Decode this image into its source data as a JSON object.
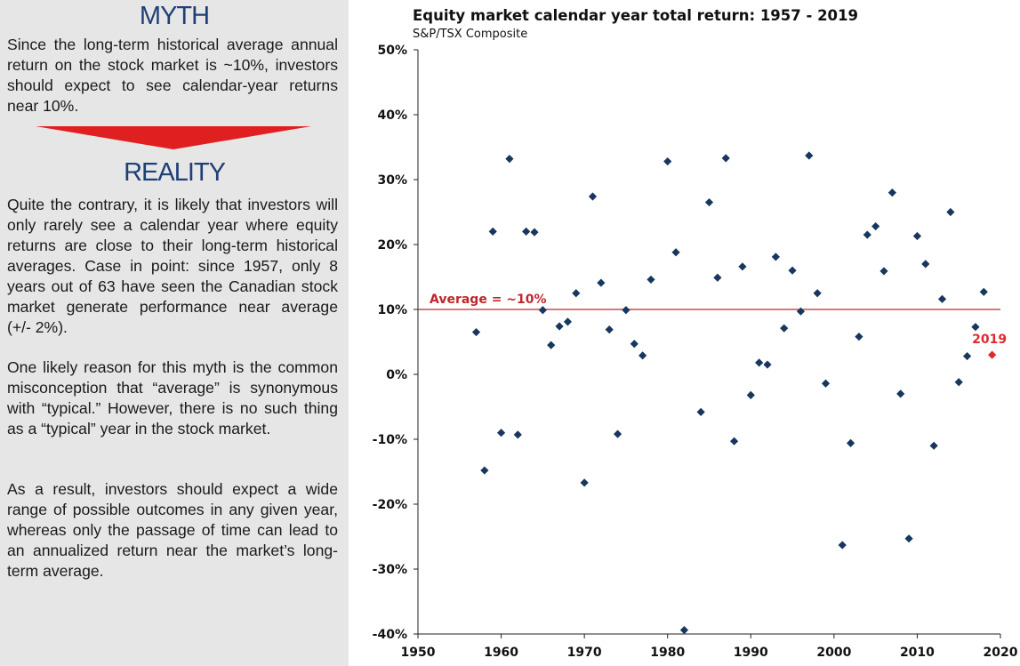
{
  "left": {
    "myth_heading": "MYTH",
    "myth_text": "Since the long-term historical average annual return on the stock market is ~10%, investors should expect to see calendar-year returns near 10%.",
    "reality_heading": "REALITY",
    "reality_paragraphs": [
      "Quite the contrary, it is likely that investors will only rarely see a calendar year where equity returns are close to their long-term historical averages. Case in point: since 1957, only 8 years out of 63 have seen the Canadian stock market generate performance near average (+/- 2%).",
      "One likely reason for this myth is the common misconception that “average” is synonymous with “typical.” However, there is no such thing as a “typical” year in the stock market.",
      "As a result, investors should expect a wide range of possible outcomes in any given year, whereas only the passage of time can lead to an annualized return near the market’s long-term average."
    ],
    "arrow_color": "#e02020",
    "heading_color": "#1f3f77"
  },
  "chart_data": {
    "type": "scatter",
    "title": "Equity market calendar year total return: 1957 - 2019",
    "subtitle": "S&P/TSX Composite",
    "xlim": [
      1950,
      2020
    ],
    "ylim": [
      -40,
      50
    ],
    "x_ticks": [
      "1950",
      "1960",
      "1970",
      "1980",
      "1990",
      "2000",
      "2010",
      "2020"
    ],
    "y_ticks": [
      "50%",
      "40%",
      "30%",
      "20%",
      "10%",
      "0%",
      "-10%",
      "-20%",
      "-30%",
      "-40%"
    ],
    "average_line": {
      "value": 10,
      "label": "Average = ~10%",
      "color": "#c0262d"
    },
    "highlight": {
      "year": 2019,
      "value": 3,
      "label": "2019",
      "color": "#e0282e"
    },
    "marker_color": "#17375e",
    "grid": false,
    "points": [
      {
        "year": 1957,
        "value": 6.5
      },
      {
        "year": 1958,
        "value": -14.8
      },
      {
        "year": 1959,
        "value": 22
      },
      {
        "year": 1960,
        "value": -9
      },
      {
        "year": 1961,
        "value": 33.2
      },
      {
        "year": 1962,
        "value": -9.3
      },
      {
        "year": 1963,
        "value": 22
      },
      {
        "year": 1964,
        "value": 21.9
      },
      {
        "year": 1965,
        "value": 9.9
      },
      {
        "year": 1966,
        "value": 4.5
      },
      {
        "year": 1967,
        "value": 7.4
      },
      {
        "year": 1968,
        "value": 8.1
      },
      {
        "year": 1969,
        "value": 12.5
      },
      {
        "year": 1970,
        "value": -16.7
      },
      {
        "year": 1971,
        "value": 27.4
      },
      {
        "year": 1972,
        "value": 14.1
      },
      {
        "year": 1973,
        "value": 6.9
      },
      {
        "year": 1974,
        "value": -9.2
      },
      {
        "year": 1975,
        "value": 9.9
      },
      {
        "year": 1976,
        "value": 4.7
      },
      {
        "year": 1977,
        "value": 2.9
      },
      {
        "year": 1978,
        "value": 14.6
      },
      {
        "year": 1980,
        "value": 32.8
      },
      {
        "year": 1981,
        "value": 18.8
      },
      {
        "year": 1982,
        "value": -39.4
      },
      {
        "year": 1984,
        "value": -5.8
      },
      {
        "year": 1985,
        "value": 26.5
      },
      {
        "year": 1986,
        "value": 14.9
      },
      {
        "year": 1987,
        "value": 33.3
      },
      {
        "year": 1988,
        "value": -10.3
      },
      {
        "year": 1989,
        "value": 16.6
      },
      {
        "year": 1990,
        "value": -3.2
      },
      {
        "year": 1991,
        "value": 1.8
      },
      {
        "year": 1992,
        "value": 1.5
      },
      {
        "year": 1993,
        "value": 18.1
      },
      {
        "year": 1994,
        "value": 7.1
      },
      {
        "year": 1995,
        "value": 16
      },
      {
        "year": 1996,
        "value": 9.7
      },
      {
        "year": 1997,
        "value": 33.7
      },
      {
        "year": 1998,
        "value": 12.5
      },
      {
        "year": 1999,
        "value": -1.4
      },
      {
        "year": 2001,
        "value": -26.3
      },
      {
        "year": 2002,
        "value": -10.6
      },
      {
        "year": 2003,
        "value": 5.8
      },
      {
        "year": 2004,
        "value": 21.5
      },
      {
        "year": 2005,
        "value": 22.8
      },
      {
        "year": 2006,
        "value": 15.9
      },
      {
        "year": 2007,
        "value": 28
      },
      {
        "year": 2008,
        "value": -3
      },
      {
        "year": 2009,
        "value": -25.3
      },
      {
        "year": 2010,
        "value": 21.3
      },
      {
        "year": 2011,
        "value": 17
      },
      {
        "year": 2012,
        "value": -11
      },
      {
        "year": 2013,
        "value": 11.6
      },
      {
        "year": 2014,
        "value": 25
      },
      {
        "year": 2015,
        "value": -1.2
      },
      {
        "year": 2016,
        "value": 2.8
      },
      {
        "year": 2017,
        "value": 7.3
      },
      {
        "year": 2018,
        "value": 12.7
      }
    ]
  }
}
